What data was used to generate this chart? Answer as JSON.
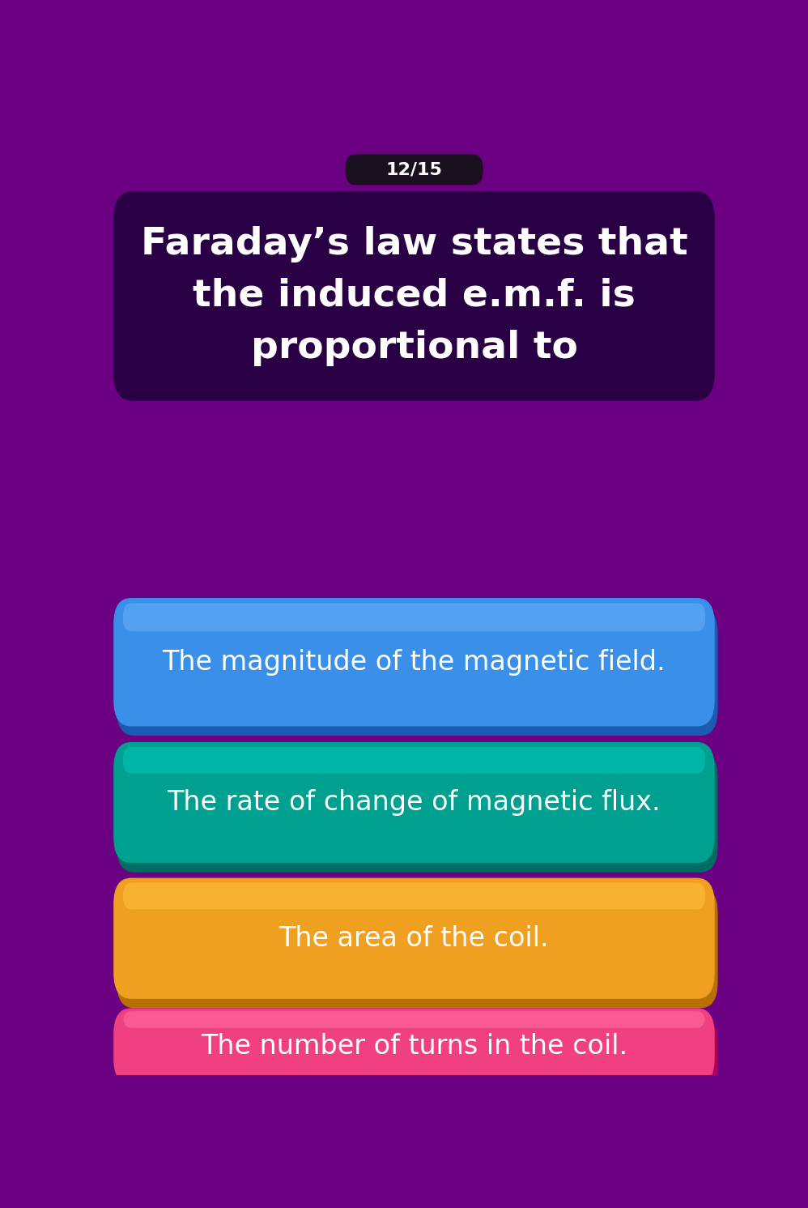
{
  "background_color": "#6b0082",
  "counter_text": "12/15",
  "counter_bg": "#1a1020",
  "question_text": "Faraday’s law states that\nthe induced e.m.f. is\nproportional to",
  "question_bg": "#2a0045",
  "question_text_color": "#ffffff",
  "options": [
    {
      "text": "The magnitude of the magnetic field.",
      "color_main": "#3a8fe8",
      "color_dark": "#1a5cb0",
      "color_light": "#6ab0ff",
      "text_color": "#ffffff"
    },
    {
      "text": "The rate of change of magnetic flux.",
      "color_main": "#00a090",
      "color_dark": "#006d65",
      "color_light": "#00c8b8",
      "text_color": "#ffffff"
    },
    {
      "text": "The area of the coil.",
      "color_main": "#f0a020",
      "color_dark": "#b87000",
      "color_light": "#ffc040",
      "text_color": "#ffffff"
    },
    {
      "text": "The number of turns in the coil.",
      "color_main": "#f04080",
      "color_dark": "#b0005a",
      "color_light": "#ff70a0",
      "text_color": "#ffffff"
    }
  ],
  "figsize": [
    9.98,
    14.91
  ],
  "dpi": 100
}
